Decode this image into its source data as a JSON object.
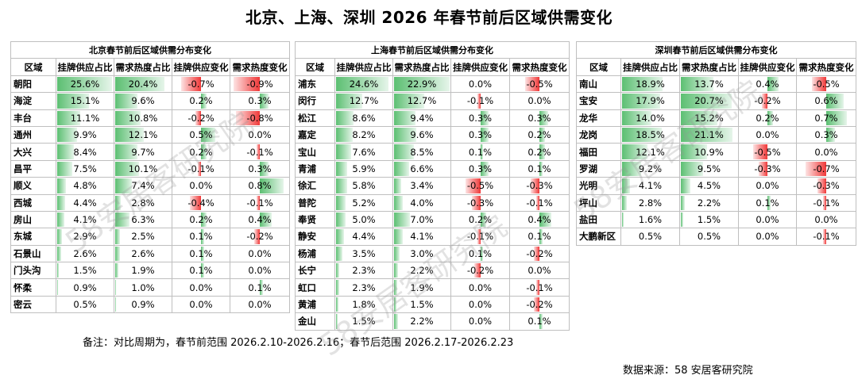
{
  "title": "北京、上海、深圳 2026 年春节前后区域供需变化",
  "columns": [
    "区域",
    "挂牌供应占比",
    "需求热度占比",
    "挂牌供应变化",
    "需求热度变化"
  ],
  "panels": [
    {
      "title": "北京春节前后区域供需分布变化",
      "rows": [
        {
          "region": "朝阳",
          "supply": "25.6%",
          "demand": "20.4%",
          "supply_change": "-0.7%",
          "demand_change": "-0.9%"
        },
        {
          "region": "海淀",
          "supply": "15.1%",
          "demand": "9.6%",
          "supply_change": "0.2%",
          "demand_change": "0.3%"
        },
        {
          "region": "丰台",
          "supply": "11.1%",
          "demand": "10.8%",
          "supply_change": "-0.2%",
          "demand_change": "-0.8%"
        },
        {
          "region": "通州",
          "supply": "9.9%",
          "demand": "12.1%",
          "supply_change": "0.5%",
          "demand_change": "0.0%"
        },
        {
          "region": "大兴",
          "supply": "8.4%",
          "demand": "9.7%",
          "supply_change": "0.2%",
          "demand_change": "-0.1%"
        },
        {
          "region": "昌平",
          "supply": "7.5%",
          "demand": "10.1%",
          "supply_change": "-0.1%",
          "demand_change": "0.3%"
        },
        {
          "region": "顺义",
          "supply": "4.8%",
          "demand": "7.4%",
          "supply_change": "0.0%",
          "demand_change": "0.8%"
        },
        {
          "region": "西城",
          "supply": "4.4%",
          "demand": "2.8%",
          "supply_change": "-0.4%",
          "demand_change": "-0.1%"
        },
        {
          "region": "房山",
          "supply": "4.1%",
          "demand": "6.3%",
          "supply_change": "0.2%",
          "demand_change": "0.4%"
        },
        {
          "region": "东城",
          "supply": "2.9%",
          "demand": "2.5%",
          "supply_change": "0.1%",
          "demand_change": "-0.2%"
        },
        {
          "region": "石景山",
          "supply": "2.6%",
          "demand": "2.6%",
          "supply_change": "0.1%",
          "demand_change": "0.0%"
        },
        {
          "region": "门头沟",
          "supply": "1.5%",
          "demand": "1.9%",
          "supply_change": "0.1%",
          "demand_change": "0.0%"
        },
        {
          "region": "怀柔",
          "supply": "0.9%",
          "demand": "1.0%",
          "supply_change": "0.0%",
          "demand_change": "0.1%"
        },
        {
          "region": "密云",
          "supply": "0.5%",
          "demand": "0.9%",
          "supply_change": "0.0%",
          "demand_change": "0.0%"
        }
      ]
    },
    {
      "title": "上海春节前后区域供需分布变化",
      "rows": [
        {
          "region": "浦东",
          "supply": "24.6%",
          "demand": "22.9%",
          "supply_change": "0.0%",
          "demand_change": "-0.5%"
        },
        {
          "region": "闵行",
          "supply": "12.7%",
          "demand": "12.7%",
          "supply_change": "-0.1%",
          "demand_change": "0.0%"
        },
        {
          "region": "松江",
          "supply": "8.6%",
          "demand": "9.4%",
          "supply_change": "0.3%",
          "demand_change": "0.3%"
        },
        {
          "region": "嘉定",
          "supply": "8.2%",
          "demand": "9.6%",
          "supply_change": "0.3%",
          "demand_change": "0.2%"
        },
        {
          "region": "宝山",
          "supply": "7.6%",
          "demand": "8.5%",
          "supply_change": "0.1%",
          "demand_change": "0.2%"
        },
        {
          "region": "青浦",
          "supply": "5.9%",
          "demand": "6.6%",
          "supply_change": "0.3%",
          "demand_change": "0.1%"
        },
        {
          "region": "徐汇",
          "supply": "5.8%",
          "demand": "3.4%",
          "supply_change": "-0.5%",
          "demand_change": "-0.3%"
        },
        {
          "region": "普陀",
          "supply": "5.2%",
          "demand": "4.0%",
          "supply_change": "-0.3%",
          "demand_change": "-0.1%"
        },
        {
          "region": "奉贤",
          "supply": "5.0%",
          "demand": "7.0%",
          "supply_change": "0.2%",
          "demand_change": "0.4%"
        },
        {
          "region": "静安",
          "supply": "4.4%",
          "demand": "4.1%",
          "supply_change": "-0.1%",
          "demand_change": "0.1%"
        },
        {
          "region": "杨浦",
          "supply": "3.5%",
          "demand": "3.0%",
          "supply_change": "0.1%",
          "demand_change": "-0.2%"
        },
        {
          "region": "长宁",
          "supply": "2.3%",
          "demand": "2.2%",
          "supply_change": "-0.2%",
          "demand_change": "0.0%"
        },
        {
          "region": "虹口",
          "supply": "2.3%",
          "demand": "1.9%",
          "supply_change": "0.0%",
          "demand_change": "-0.1%"
        },
        {
          "region": "黄浦",
          "supply": "1.8%",
          "demand": "1.5%",
          "supply_change": "0.0%",
          "demand_change": "-0.2%"
        },
        {
          "region": "金山",
          "supply": "1.5%",
          "demand": "2.2%",
          "supply_change": "0.0%",
          "demand_change": "0.1%"
        }
      ]
    },
    {
      "title": "深圳春节前后区域供需分布变化",
      "rows": [
        {
          "region": "南山",
          "supply": "18.9%",
          "demand": "13.7%",
          "supply_change": "0.4%",
          "demand_change": "-0.5%"
        },
        {
          "region": "宝安",
          "supply": "17.9%",
          "demand": "20.7%",
          "supply_change": "-0.2%",
          "demand_change": "0.6%"
        },
        {
          "region": "龙华",
          "supply": "14.0%",
          "demand": "15.2%",
          "supply_change": "0.2%",
          "demand_change": "0.7%"
        },
        {
          "region": "龙岗",
          "supply": "18.5%",
          "demand": "21.1%",
          "supply_change": "0.0%",
          "demand_change": "0.3%"
        },
        {
          "region": "福田",
          "supply": "12.1%",
          "demand": "10.9%",
          "supply_change": "-0.5%",
          "demand_change": "0.0%"
        },
        {
          "region": "罗湖",
          "supply": "9.2%",
          "demand": "9.5%",
          "supply_change": "-0.3%",
          "demand_change": "-0.7%"
        },
        {
          "region": "光明",
          "supply": "4.1%",
          "demand": "4.5%",
          "supply_change": "0.0%",
          "demand_change": "-0.3%"
        },
        {
          "region": "坪山",
          "supply": "2.8%",
          "demand": "2.2%",
          "supply_change": "0.1%",
          "demand_change": "-0.1%"
        },
        {
          "region": "盐田",
          "supply": "1.6%",
          "demand": "1.5%",
          "supply_change": "0.0%",
          "demand_change": "0.0%"
        },
        {
          "region": "大鹏新区",
          "supply": "0.5%",
          "demand": "0.5%",
          "supply_change": "0.0%",
          "demand_change": "-0.1%"
        }
      ]
    }
  ],
  "note": "备注：对比周期为，春节前范围 2026.2.10-2026.2.16；春节后范围 2026.2.17-2026.2.23",
  "source": "数据来源：58 安居客研究院",
  "colors": {
    "positive": "#5cbf72",
    "negative": "#f03838",
    "grid": "#bfbfbf"
  }
}
